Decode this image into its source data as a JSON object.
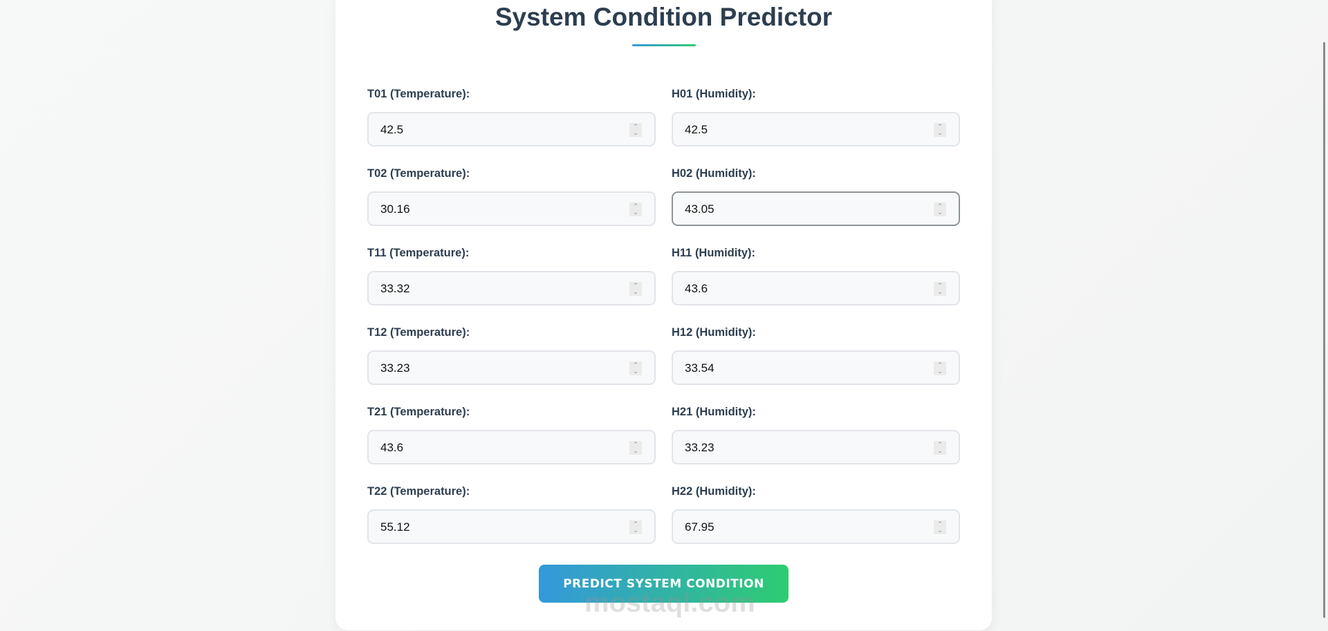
{
  "title": "System Condition Predictor",
  "fields": [
    {
      "label": "T01 (Temperature):",
      "value": "42.5"
    },
    {
      "label": "H01 (Humidity):",
      "value": "42.5"
    },
    {
      "label": "T02 (Temperature):",
      "value": "30.16"
    },
    {
      "label": "H02 (Humidity):",
      "value": "43.05"
    },
    {
      "label": "T11 (Temperature):",
      "value": "33.32"
    },
    {
      "label": "H11 (Humidity):",
      "value": "43.6"
    },
    {
      "label": "T12 (Temperature):",
      "value": "33.23"
    },
    {
      "label": "H12 (Humidity):",
      "value": "33.54"
    },
    {
      "label": "T21 (Temperature):",
      "value": "43.6"
    },
    {
      "label": "H21 (Humidity):",
      "value": "33.23"
    },
    {
      "label": "T22 (Temperature):",
      "value": "55.12"
    },
    {
      "label": "H22 (Humidity):",
      "value": "67.95"
    }
  ],
  "focused_field": "H02",
  "button_label": "PREDICT SYSTEM CONDITION",
  "watermark": "mostaql.com",
  "colors": {
    "accent_start": "#3498db",
    "accent_end": "#2ecc71",
    "heading": "#2c3e50"
  }
}
